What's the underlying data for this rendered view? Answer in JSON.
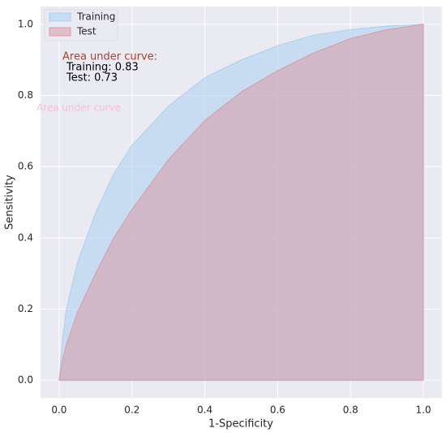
{
  "chart_data": {
    "type": "area",
    "x_label": "1-Specificity",
    "y_label": "Sensitivity",
    "x": [
      0,
      0.01,
      0.02,
      0.05,
      0.1,
      0.15,
      0.2,
      0.3,
      0.4,
      0.5,
      0.6,
      0.7,
      0.8,
      0.9,
      1
    ],
    "series": [
      {
        "name": "Training",
        "color": "#a9cfee",
        "values": [
          0,
          0.12,
          0.2,
          0.33,
          0.47,
          0.58,
          0.66,
          0.77,
          0.85,
          0.9,
          0.94,
          0.97,
          0.985,
          0.995,
          1
        ]
      },
      {
        "name": "Test",
        "color": "#d99aa6",
        "values": [
          0,
          0.06,
          0.1,
          0.19,
          0.3,
          0.4,
          0.48,
          0.62,
          0.73,
          0.81,
          0.87,
          0.92,
          0.96,
          0.985,
          1
        ]
      }
    ],
    "annotation": {
      "title": "Area under curve:",
      "lines": [
        "Training: 0.83",
        "Test: 0.73"
      ]
    },
    "faint_label": "Area under curve",
    "xlim": [
      -0.051,
      1.051
    ],
    "ylim": [
      -0.05,
      1.05
    ],
    "xticks": [
      {
        "value": 0,
        "label": "0.0"
      },
      0.2,
      0.4,
      0.6,
      0.8,
      {
        "value": 1,
        "label": "1.0"
      }
    ],
    "yticks": [
      {
        "value": 0,
        "label": "0.0"
      },
      0.2,
      0.4,
      0.6,
      0.8,
      {
        "value": 1,
        "label": "1.0"
      }
    ],
    "grid": true,
    "legend": "upper-left"
  }
}
